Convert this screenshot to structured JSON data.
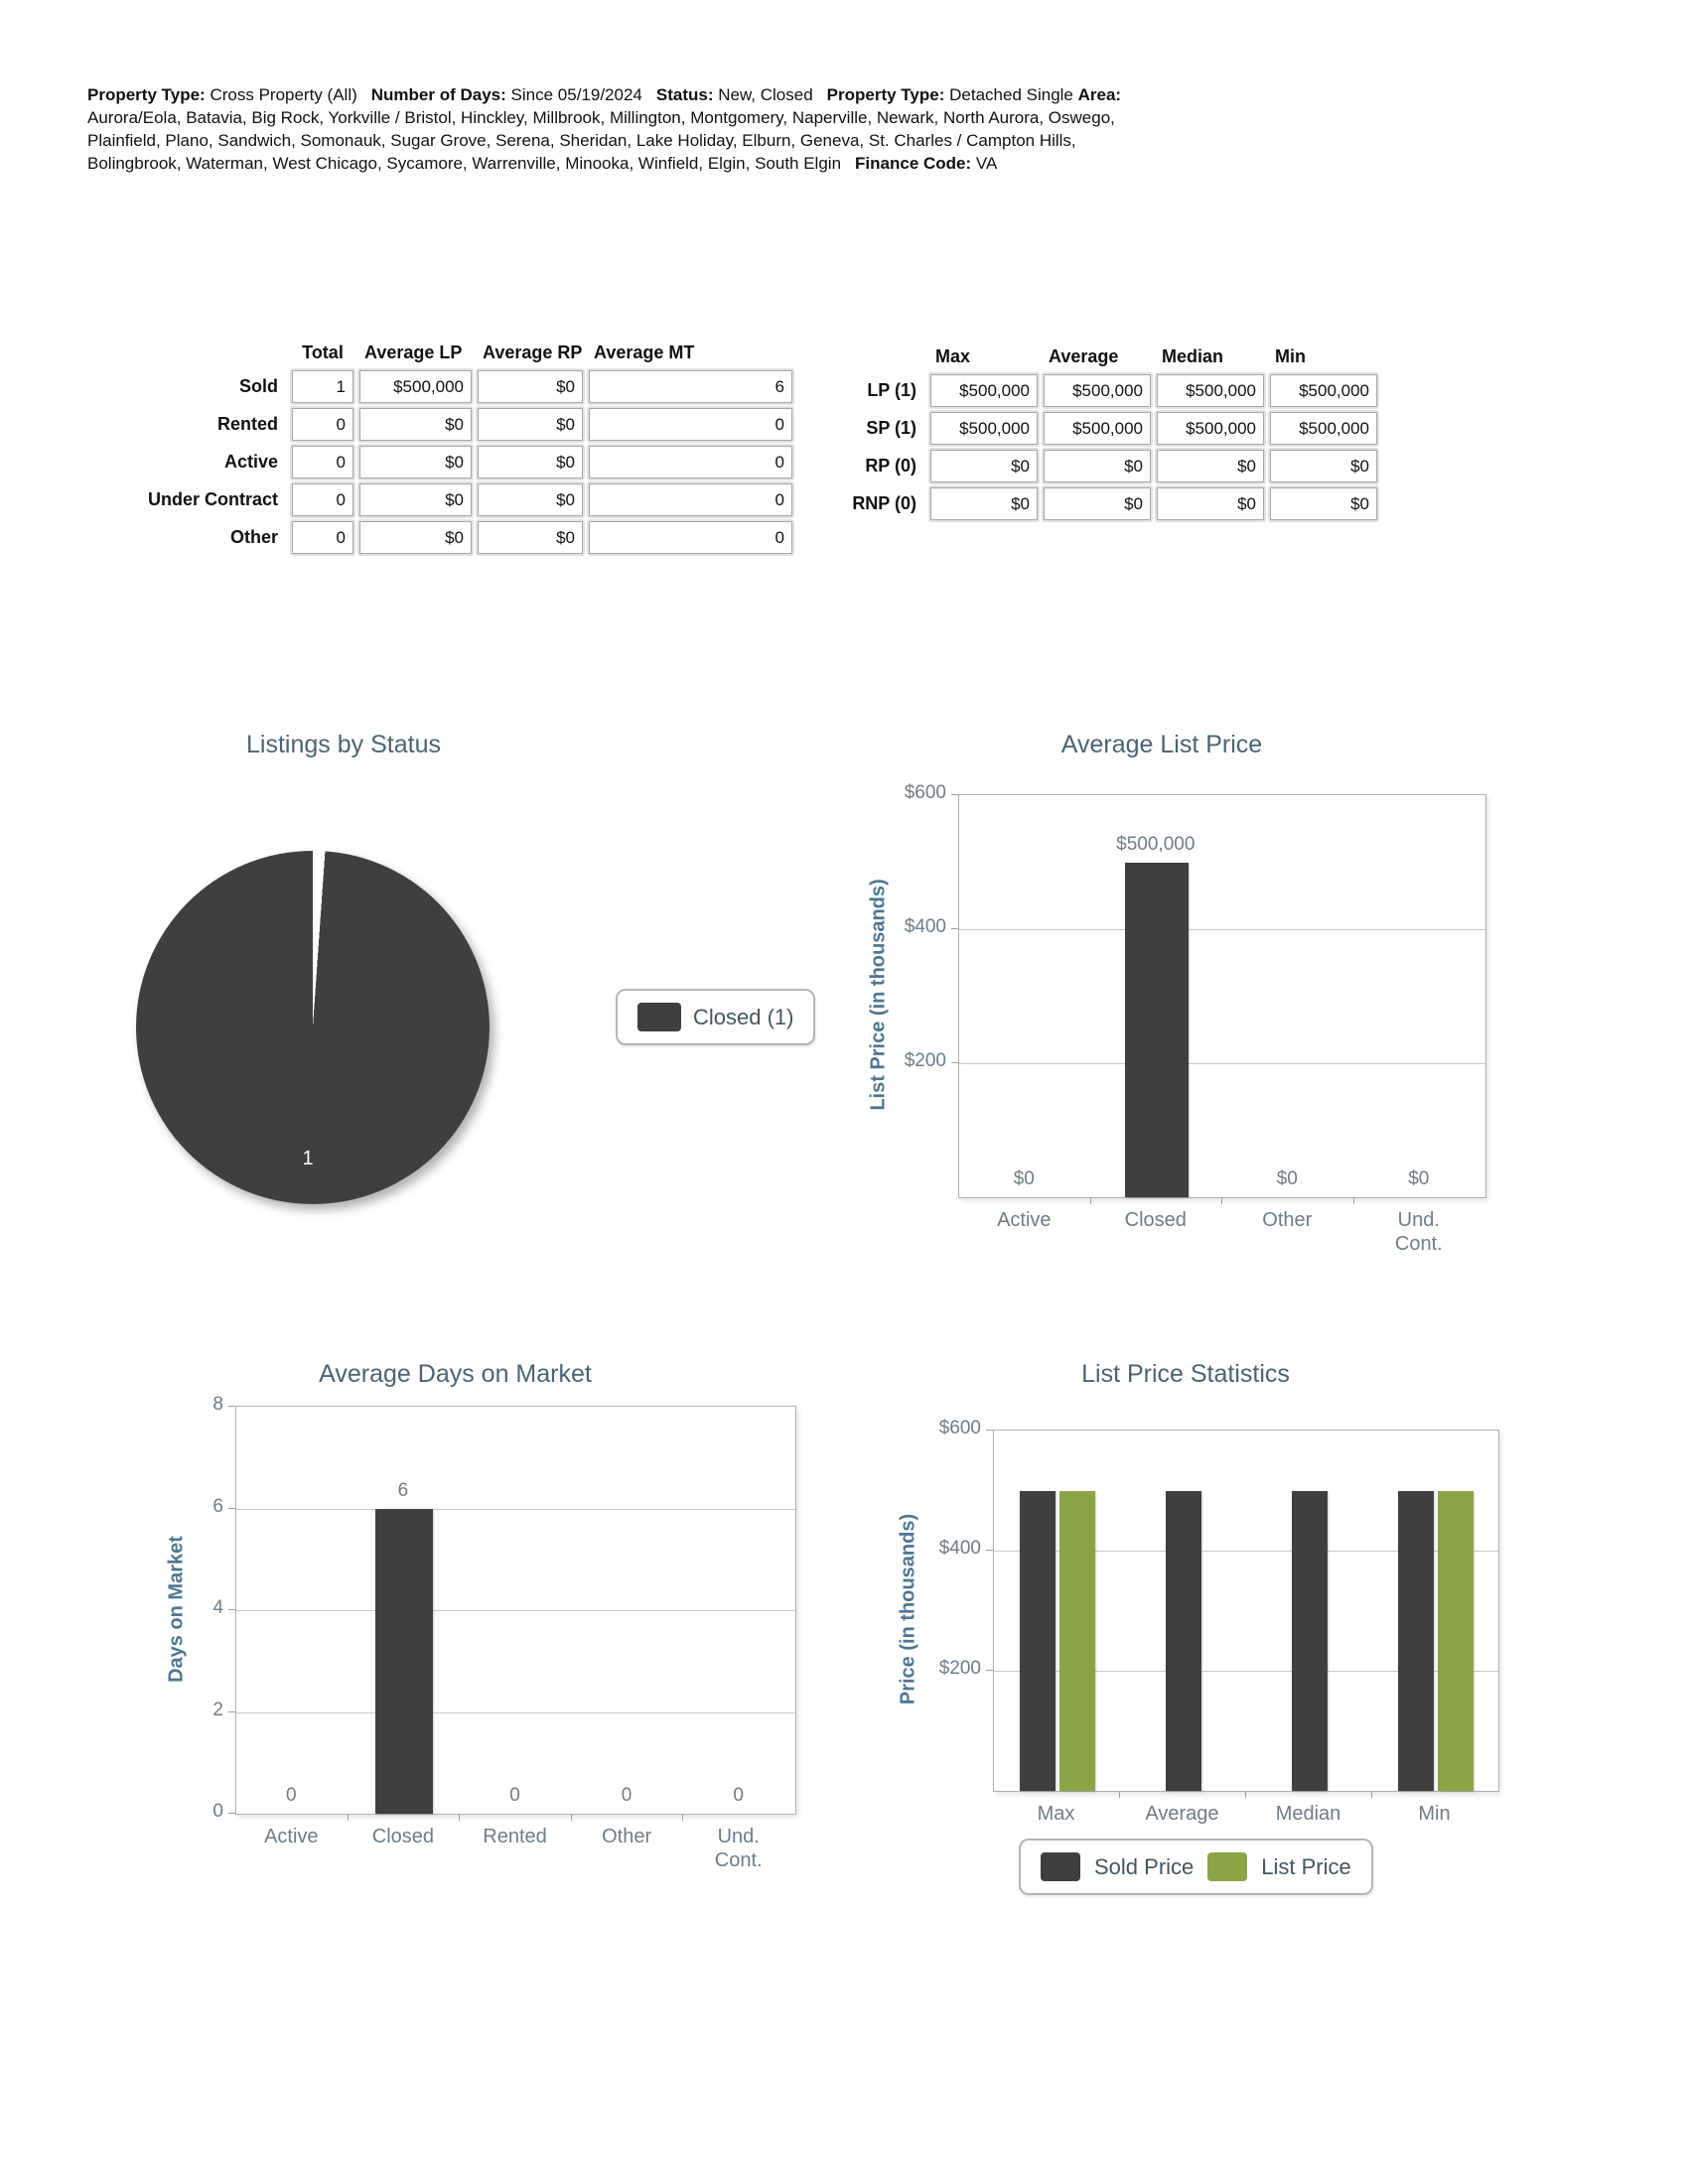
{
  "header": {
    "segments": [
      {
        "label": "Property Type:",
        "value": "Cross Property (All)"
      },
      {
        "label": "Number of Days:",
        "value": "Since 05/19/2024"
      },
      {
        "label": "Status:",
        "value": "New, Closed"
      },
      {
        "label": "Property Type:",
        "value": "Detached Single"
      },
      {
        "label": "Area:",
        "value": "Aurora/Eola, Batavia, Big Rock, Yorkville / Bristol, Hinckley, Millbrook, Millington, Montgomery, Naperville, Newark, North Aurora, Oswego, Plainfield, Plano, Sandwich, Somonauk, Sugar Grove, Serena, Sheridan, Lake Holiday, Elburn, Geneva, St. Charles / Campton Hills, Bolingbrook, Waterman, West Chicago, Sycamore, Warrenville, Minooka, Winfield, Elgin, South Elgin"
      },
      {
        "label": "Finance Code:",
        "value": "VA"
      }
    ]
  },
  "status_table": {
    "columns": [
      "Total",
      "Average LP",
      "Average RP",
      "Average MT"
    ],
    "rows": [
      {
        "label": "Sold",
        "values": [
          "1",
          "$500,000",
          "$0",
          "6"
        ]
      },
      {
        "label": "Rented",
        "values": [
          "0",
          "$0",
          "$0",
          "0"
        ]
      },
      {
        "label": "Active",
        "values": [
          "0",
          "$0",
          "$0",
          "0"
        ]
      },
      {
        "label": "Under Contract",
        "values": [
          "0",
          "$0",
          "$0",
          "0"
        ]
      },
      {
        "label": "Other",
        "values": [
          "0",
          "$0",
          "$0",
          "0"
        ]
      }
    ]
  },
  "price_table": {
    "columns": [
      "Max",
      "Average",
      "Median",
      "Min"
    ],
    "rows": [
      {
        "label": "LP (1)",
        "values": [
          "$500,000",
          "$500,000",
          "$500,000",
          "$500,000"
        ]
      },
      {
        "label": "SP (1)",
        "values": [
          "$500,000",
          "$500,000",
          "$500,000",
          "$500,000"
        ]
      },
      {
        "label": "RP (0)",
        "values": [
          "$0",
          "$0",
          "$0",
          "$0"
        ]
      },
      {
        "label": "RNP (0)",
        "values": [
          "$0",
          "$0",
          "$0",
          "$0"
        ]
      }
    ]
  },
  "colors": {
    "sold_dark": "#3f3f3f",
    "list_green": "#8ba446",
    "title": "#4c6372",
    "axis_label": "#4f768f",
    "tick_text": "#6f7c86"
  },
  "chart_data": [
    {
      "type": "pie",
      "title": "Listings by Status",
      "slices": [
        {
          "label": "Closed",
          "value": 1,
          "color": "#3f3f3f"
        }
      ],
      "data_label": "1",
      "legend": [
        {
          "label": "Closed (1)",
          "color": "#3f3f3f"
        }
      ]
    },
    {
      "type": "bar",
      "title": "Average List Price",
      "ylabel": "List Price (in thousands)",
      "ylim": [
        0,
        600
      ],
      "unit_divisor": 1000,
      "yticks": [
        {
          "value": 600,
          "label": "$600"
        },
        {
          "value": 400,
          "label": "$400"
        },
        {
          "value": 200,
          "label": "$200"
        }
      ],
      "gridlines": [
        400,
        200
      ],
      "categories": [
        "Active",
        "Closed",
        "Other",
        "Und. Cont."
      ],
      "values": [
        0,
        500000,
        0,
        0
      ],
      "value_labels": [
        "$0",
        "$500,000",
        "$0",
        "$0"
      ],
      "bar_color": "#3f3f3f"
    },
    {
      "type": "bar",
      "title": "Average Days on Market",
      "ylabel": "Days on Market",
      "ylim": [
        0,
        8
      ],
      "unit_divisor": 1,
      "yticks": [
        {
          "value": 8,
          "label": "8"
        },
        {
          "value": 6,
          "label": "6"
        },
        {
          "value": 4,
          "label": "4"
        },
        {
          "value": 2,
          "label": "2"
        },
        {
          "value": 0,
          "label": "0"
        }
      ],
      "gridlines": [
        6,
        4,
        2
      ],
      "categories": [
        "Active",
        "Closed",
        "Rented",
        "Other",
        "Und. Cont."
      ],
      "values": [
        0,
        6,
        0,
        0,
        0
      ],
      "value_labels": [
        "0",
        "6",
        "0",
        "0",
        "0"
      ],
      "bar_color": "#3f3f3f"
    },
    {
      "type": "bar",
      "title": "List Price Statistics",
      "ylabel": "Price (in thousands)",
      "ylim": [
        0,
        600
      ],
      "unit_divisor": 1000,
      "yticks": [
        {
          "value": 600,
          "label": "$600"
        },
        {
          "value": 400,
          "label": "$400"
        },
        {
          "value": 200,
          "label": "$200"
        }
      ],
      "gridlines": [
        400,
        200
      ],
      "categories": [
        "Max",
        "Average",
        "Median",
        "Min"
      ],
      "series": [
        {
          "name": "Sold Price",
          "color": "#3f3f3f",
          "values": [
            500000,
            500000,
            500000,
            500000
          ]
        },
        {
          "name": "List Price",
          "color": "#8ba446",
          "values": [
            500000,
            null,
            null,
            500000
          ]
        }
      ],
      "legend_position": "bottom"
    }
  ]
}
